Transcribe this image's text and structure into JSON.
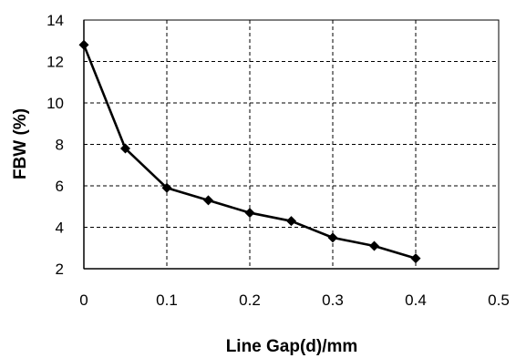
{
  "chart_data": {
    "type": "line",
    "title": "",
    "xlabel": "Line Gap(d)/mm",
    "ylabel": "FBW (%)",
    "xlim": [
      0,
      0.5
    ],
    "ylim": [
      2,
      14
    ],
    "xticks": [
      0,
      0.1,
      0.2,
      0.3,
      0.4,
      0.5
    ],
    "xtick_labels": [
      "0",
      "0.1",
      "0.2",
      "0.3",
      "0.4",
      "0.5"
    ],
    "yticks": [
      2,
      4,
      6,
      8,
      10,
      12,
      14
    ],
    "ytick_labels": [
      "2",
      "4",
      "6",
      "8",
      "10",
      "12",
      "14"
    ],
    "grid": true,
    "legend": "none",
    "series": [
      {
        "marker": "diamond",
        "color": "#000000",
        "x": [
          0,
          0.05,
          0.1,
          0.15,
          0.2,
          0.25,
          0.3,
          0.35,
          0.4
        ],
        "y": [
          12.8,
          7.8,
          5.9,
          5.3,
          4.7,
          4.3,
          3.5,
          3.1,
          2.5
        ]
      }
    ]
  }
}
